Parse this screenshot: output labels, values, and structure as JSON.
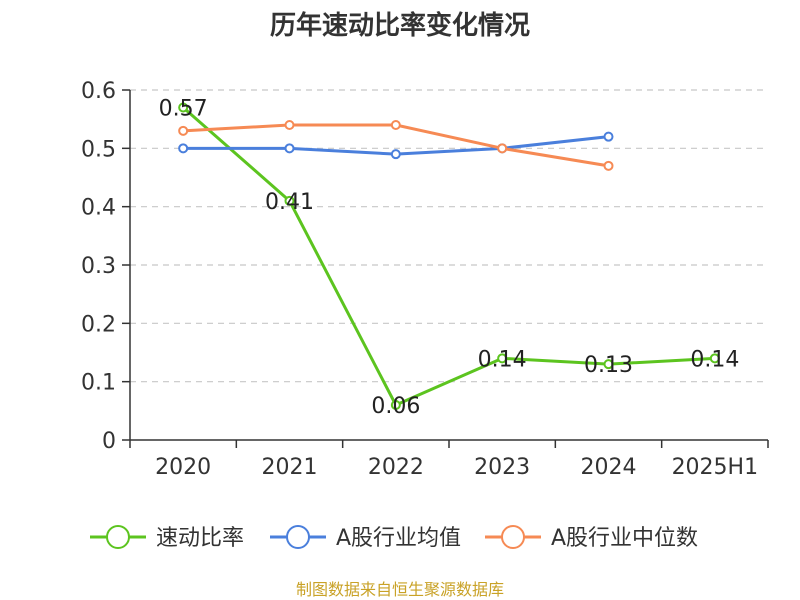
{
  "chart_data": {
    "type": "line",
    "title": "历年速动比率变化情况",
    "categories": [
      "2020",
      "2021",
      "2022",
      "2023",
      "2024",
      "2025H1"
    ],
    "ylim": [
      0,
      0.6
    ],
    "yticks": [
      0,
      0.1,
      0.2,
      0.3,
      0.4,
      0.5,
      0.6
    ],
    "ytick_labels": [
      "0",
      "0.1",
      "0.2",
      "0.3",
      "0.4",
      "0.5",
      "0.6"
    ],
    "grid": true,
    "legend_position": "bottom",
    "series": [
      {
        "name": "速动比率",
        "color": "#5cc41f",
        "values": [
          0.57,
          0.41,
          0.06,
          0.14,
          0.13,
          0.14
        ],
        "labels": [
          "0.57",
          "0.41",
          "0.06",
          "0.14",
          "0.13",
          "0.14"
        ]
      },
      {
        "name": "A股行业均值",
        "color": "#4a7fdc",
        "values": [
          0.5,
          0.5,
          0.49,
          0.5,
          0.52,
          null
        ]
      },
      {
        "name": "A股行业中位数",
        "color": "#f68a54",
        "values": [
          0.53,
          0.54,
          0.54,
          0.5,
          0.47,
          null
        ]
      }
    ]
  },
  "footer": {
    "source": "制图数据来自恒生聚源数据库"
  }
}
